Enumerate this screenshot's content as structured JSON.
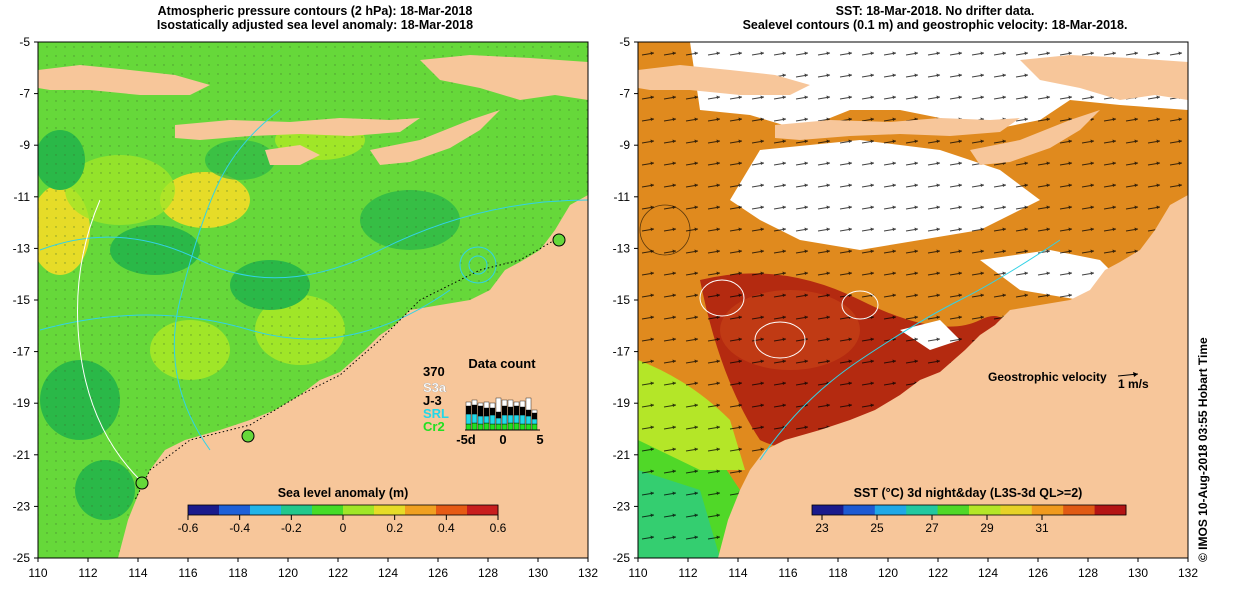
{
  "left_panel": {
    "title_line1": "Atmospheric pressure contours (2 hPa): 18-Mar-2018",
    "title_line2": "Isostatically adjusted sea level anomaly: 18-Mar-2018",
    "colorbar": {
      "title": "Sea level anomaly (m)",
      "ticks": [
        "-0.6",
        "-0.4",
        "-0.2",
        "0",
        "0.2",
        "0.4",
        "0.6"
      ],
      "colors": [
        "#1a1a8c",
        "#1e60d8",
        "#22b4e8",
        "#22c88c",
        "#46dc28",
        "#a0e628",
        "#e6dc28",
        "#f0a020",
        "#e65a14",
        "#c81e1e"
      ]
    },
    "data_count": {
      "title": "Data count",
      "max_label": "370",
      "missions": [
        {
          "name": "S3a",
          "color": "#ffffff"
        },
        {
          "name": "J-3",
          "color": "#000000"
        },
        {
          "name": "SRL",
          "color": "#22d8e8"
        },
        {
          "name": "Cr2",
          "color": "#22e022"
        }
      ],
      "x_ticks": [
        "-5d",
        "0",
        "5"
      ]
    }
  },
  "right_panel": {
    "title_line1": "SST: 18-Mar-2018. No drifter data.",
    "title_line2": "Sealevel contours (0.1 m) and geostrophic velocity: 18-Mar-2018.",
    "velocity_label": "Geostrophic velocity",
    "velocity_scale": "1 m/s",
    "colorbar": {
      "title": "SST (°C) 3d night&day (L3S-3d QL>=2)",
      "ticks": [
        "23",
        "25",
        "27",
        "29",
        "31"
      ],
      "colors": [
        "#1a1a8c",
        "#1e5ad2",
        "#20a8e6",
        "#22c8a0",
        "#50d828",
        "#b4e628",
        "#e6d228",
        "#f09a1e",
        "#e05a14",
        "#b41414"
      ]
    }
  },
  "y_ticks": [
    "-5",
    "-7",
    "-9",
    "-11",
    "-13",
    "-15",
    "-17",
    "-19",
    "-21",
    "-23",
    "-25"
  ],
  "x_ticks": [
    "110",
    "112",
    "114",
    "116",
    "118",
    "120",
    "122",
    "124",
    "126",
    "128",
    "130",
    "132"
  ],
  "side_note": "© IMOS 10-Aug-2018 03:55 Hobart Time",
  "colors": {
    "land": "#f7c69a",
    "sea_green": "#66d83a",
    "sst_orange": "#e08a1e",
    "sst_dark": "#b42a10",
    "contour_cyan": "#32d2e6"
  }
}
